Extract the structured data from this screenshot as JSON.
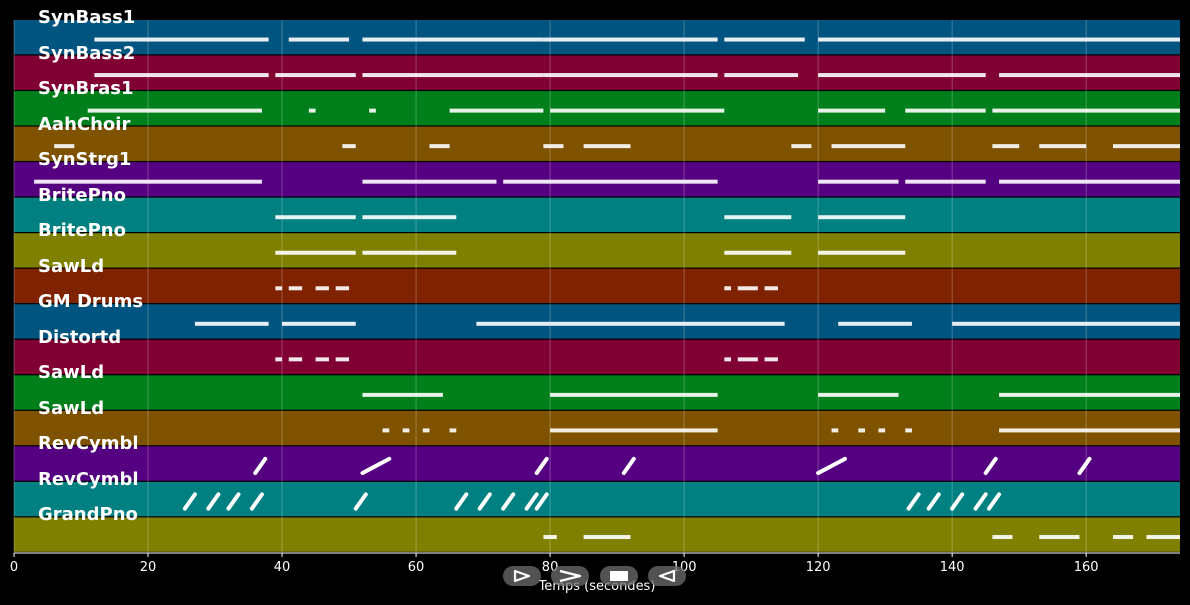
{
  "chart_data": {
    "type": "piano-roll",
    "xlabel": "Temps (secondes)",
    "xlim": [
      0,
      174
    ],
    "xticks": [
      0,
      20,
      40,
      60,
      80,
      100,
      120,
      140,
      160
    ],
    "tick_labels": [
      "0",
      "20",
      "40",
      "60",
      "80",
      "100",
      "120",
      "140",
      "160"
    ],
    "grid": true,
    "tracks": [
      {
        "name": "SynBass1",
        "color": "#005580",
        "segments": [
          [
            12,
            38
          ],
          [
            41,
            50
          ],
          [
            52,
            79
          ],
          [
            79,
            105
          ],
          [
            106,
            118
          ],
          [
            120,
            174
          ]
        ]
      },
      {
        "name": "SynBass2",
        "color": "#800033",
        "segments": [
          [
            12,
            38
          ],
          [
            39,
            51
          ],
          [
            52,
            79
          ],
          [
            79,
            105
          ],
          [
            106,
            117
          ],
          [
            120,
            145
          ],
          [
            147,
            174
          ]
        ]
      },
      {
        "name": "SynBras1",
        "color": "#007f1a",
        "segments": [
          [
            11,
            37
          ],
          [
            44,
            45
          ],
          [
            53,
            54
          ],
          [
            65,
            79
          ],
          [
            80,
            106
          ],
          [
            120,
            130
          ],
          [
            133,
            145
          ],
          [
            146,
            174
          ]
        ]
      },
      {
        "name": "AahChoir",
        "color": "#7f5200",
        "segments": [
          [
            6,
            9
          ],
          [
            49,
            51
          ],
          [
            62,
            65
          ],
          [
            79,
            82
          ],
          [
            85,
            92
          ],
          [
            116,
            119
          ],
          [
            122,
            133
          ],
          [
            146,
            150
          ],
          [
            153,
            160
          ],
          [
            164,
            174
          ]
        ]
      },
      {
        "name": "SynStrg1",
        "color": "#550080",
        "segments": [
          [
            3,
            37
          ],
          [
            52,
            72
          ],
          [
            73,
            105
          ],
          [
            120,
            132
          ],
          [
            133,
            145
          ],
          [
            147,
            174
          ]
        ]
      },
      {
        "name": "BritePno",
        "color": "#008080",
        "segments": [
          [
            39,
            51
          ],
          [
            52,
            66
          ],
          [
            106,
            116
          ],
          [
            120,
            133
          ]
        ]
      },
      {
        "name": "BritePno",
        "color": "#808000",
        "segments": [
          [
            39,
            51
          ],
          [
            52,
            66
          ],
          [
            106,
            116
          ],
          [
            120,
            133
          ]
        ]
      },
      {
        "name": "SawLd",
        "color": "#7f2200",
        "segments": [
          [
            39,
            40
          ],
          [
            41,
            43
          ],
          [
            45,
            47
          ],
          [
            48,
            50
          ],
          [
            106,
            107
          ],
          [
            108,
            111
          ],
          [
            112,
            114
          ]
        ]
      },
      {
        "name": "GM Drums",
        "color": "#005580",
        "segments": [
          [
            27,
            38
          ],
          [
            40,
            51
          ],
          [
            69,
            80
          ],
          [
            80,
            115
          ],
          [
            123,
            134
          ],
          [
            140,
            174
          ]
        ]
      },
      {
        "name": "Distortd",
        "color": "#800033",
        "segments": [
          [
            39,
            40
          ],
          [
            41,
            43
          ],
          [
            45,
            47
          ],
          [
            48,
            50
          ],
          [
            106,
            107
          ],
          [
            108,
            111
          ],
          [
            112,
            114
          ]
        ]
      },
      {
        "name": "SawLd",
        "color": "#007f1a",
        "segments": [
          [
            52,
            64
          ],
          [
            80,
            105
          ],
          [
            120,
            132
          ],
          [
            147,
            174
          ]
        ]
      },
      {
        "name": "SawLd",
        "color": "#7f5200",
        "segments": [
          [
            55,
            56
          ],
          [
            58,
            59
          ],
          [
            61,
            62
          ],
          [
            65,
            66
          ],
          [
            80,
            105
          ],
          [
            122,
            123
          ],
          [
            126,
            127
          ],
          [
            129,
            130
          ],
          [
            133,
            134
          ],
          [
            147,
            174
          ]
        ]
      },
      {
        "name": "RevCymbl",
        "color": "#550080",
        "slides": [
          [
            36,
            37.5
          ],
          [
            52,
            56
          ],
          [
            78,
            79.5
          ],
          [
            91,
            92.5
          ],
          [
            120,
            124
          ],
          [
            145,
            146.5
          ],
          [
            159,
            160.5
          ]
        ]
      },
      {
        "name": "RevCymbl",
        "color": "#008080",
        "slides": [
          [
            25.5,
            27
          ],
          [
            29,
            30.5
          ],
          [
            32,
            33.5
          ],
          [
            35.5,
            37
          ],
          [
            51,
            52.5
          ],
          [
            66,
            67.5
          ],
          [
            69.5,
            71
          ],
          [
            73,
            74.5
          ],
          [
            76.5,
            78
          ],
          [
            78,
            79.5
          ],
          [
            133.5,
            135
          ],
          [
            136.5,
            138
          ],
          [
            140,
            141.5
          ],
          [
            143.5,
            145
          ],
          [
            145.5,
            147
          ]
        ]
      },
      {
        "name": "GrandPno",
        "color": "#808000",
        "segments": [
          [
            79,
            81
          ],
          [
            85,
            92
          ],
          [
            146,
            149
          ],
          [
            153,
            159
          ],
          [
            164,
            167
          ],
          [
            169,
            174
          ]
        ]
      }
    ]
  },
  "controls": [
    {
      "name": "play-forward-button",
      "icon": "play-outline-icon"
    },
    {
      "name": "fast-forward-button",
      "icon": "chevron-right-icon"
    },
    {
      "name": "stop-button",
      "icon": "stop-icon"
    },
    {
      "name": "rewind-button",
      "icon": "play-reverse-outline-icon"
    }
  ]
}
